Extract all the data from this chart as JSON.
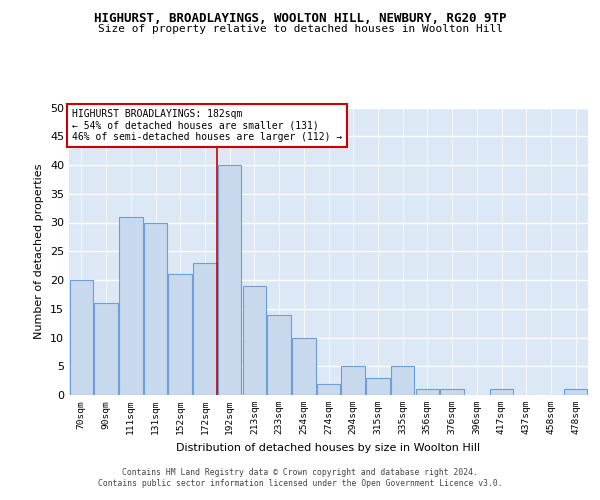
{
  "title": "HIGHURST, BROADLAYINGS, WOOLTON HILL, NEWBURY, RG20 9TP",
  "subtitle": "Size of property relative to detached houses in Woolton Hill",
  "xlabel": "Distribution of detached houses by size in Woolton Hill",
  "ylabel": "Number of detached properties",
  "bar_color": "#c8d9ee",
  "bar_edge_color": "#6a9fd8",
  "background_color": "#dce8f5",
  "grid_color": "#ffffff",
  "vline_color": "#cc0000",
  "categories": [
    "70sqm",
    "90sqm",
    "111sqm",
    "131sqm",
    "152sqm",
    "172sqm",
    "192sqm",
    "213sqm",
    "233sqm",
    "254sqm",
    "274sqm",
    "294sqm",
    "315sqm",
    "335sqm",
    "356sqm",
    "376sqm",
    "396sqm",
    "417sqm",
    "437sqm",
    "458sqm",
    "478sqm"
  ],
  "values": [
    20,
    16,
    31,
    30,
    21,
    23,
    40,
    19,
    14,
    10,
    2,
    5,
    3,
    5,
    1,
    1,
    0,
    1,
    0,
    0,
    1
  ],
  "vline_index": 6,
  "ylim": [
    0,
    50
  ],
  "yticks": [
    0,
    5,
    10,
    15,
    20,
    25,
    30,
    35,
    40,
    45,
    50
  ],
  "annotation_text": "HIGHURST BROADLAYINGS: 182sqm\n← 54% of detached houses are smaller (131)\n46% of semi-detached houses are larger (112) →",
  "footer_line1": "Contains HM Land Registry data © Crown copyright and database right 2024.",
  "footer_line2": "Contains public sector information licensed under the Open Government Licence v3.0."
}
